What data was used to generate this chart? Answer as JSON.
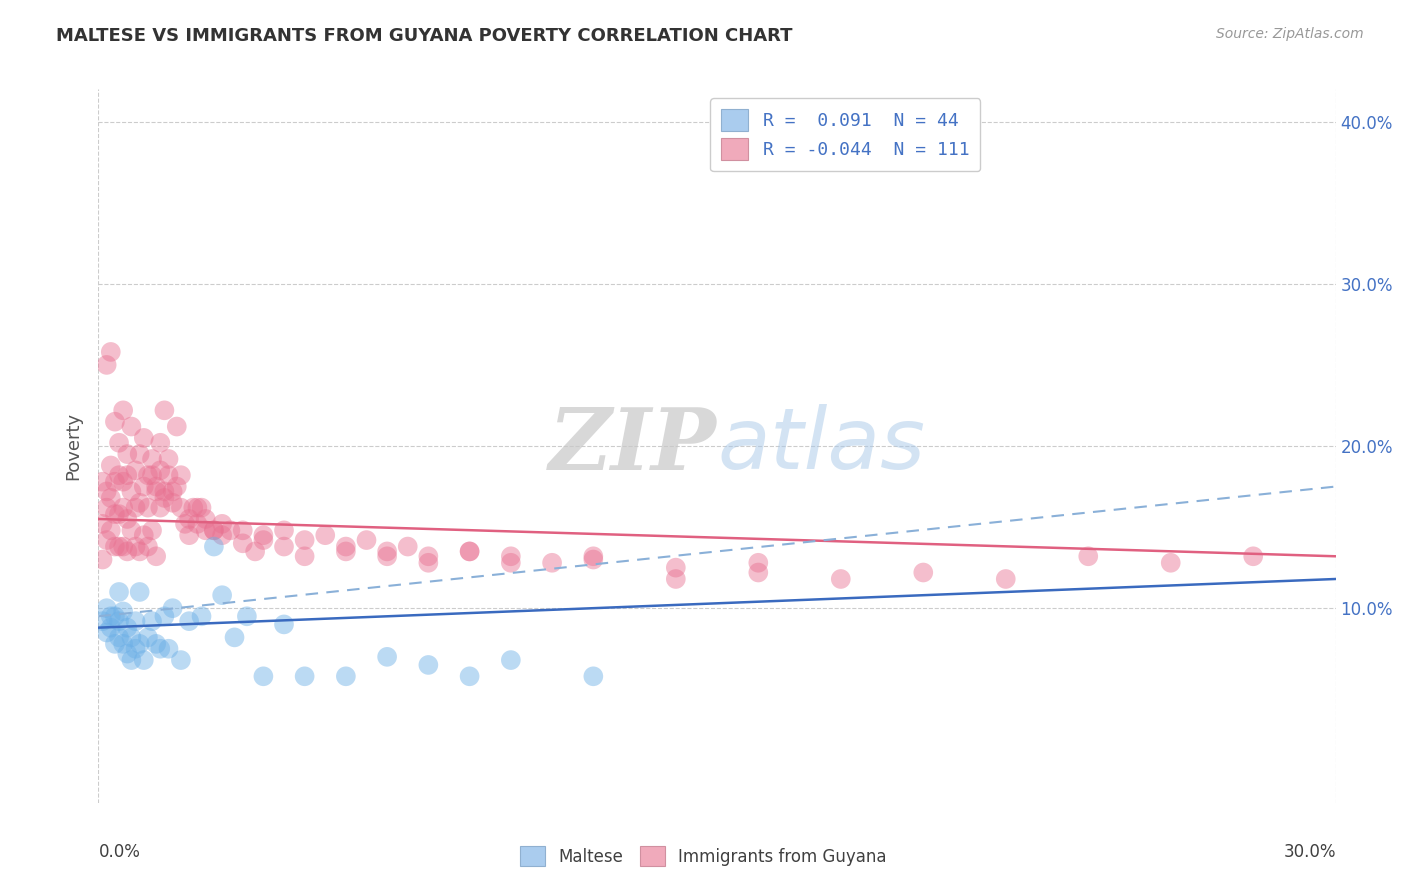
{
  "title": "MALTESE VS IMMIGRANTS FROM GUYANA POVERTY CORRELATION CHART",
  "source": "Source: ZipAtlas.com",
  "ylabel": "Poverty",
  "xlim": [
    0.0,
    0.3
  ],
  "ylim": [
    -0.02,
    0.42
  ],
  "yticks": [
    0.1,
    0.2,
    0.3,
    0.4
  ],
  "ytick_labels": [
    "10.0%",
    "20.0%",
    "30.0%",
    "40.0%"
  ],
  "legend_entries": [
    {
      "label": "R =  0.091  N = 44",
      "color": "#aaccee"
    },
    {
      "label": "R = -0.044  N = 111",
      "color": "#f0aabb"
    }
  ],
  "maltese_color": "#6aaee6",
  "guyana_color": "#e87090",
  "trend_maltese_color": "#3a6abf",
  "trend_guyana_color": "#e06080",
  "trend_dashed_color": "#8ab0d8",
  "background_color": "#ffffff",
  "grid_color": "#cccccc",
  "title_color": "#404040",
  "watermark_zip": "ZIP",
  "watermark_atlas": "atlas",
  "maltese_x": [
    0.001,
    0.002,
    0.002,
    0.003,
    0.003,
    0.004,
    0.004,
    0.005,
    0.005,
    0.005,
    0.006,
    0.006,
    0.007,
    0.007,
    0.008,
    0.008,
    0.009,
    0.009,
    0.01,
    0.01,
    0.011,
    0.012,
    0.013,
    0.014,
    0.015,
    0.016,
    0.017,
    0.018,
    0.02,
    0.022,
    0.025,
    0.028,
    0.03,
    0.033,
    0.036,
    0.04,
    0.045,
    0.05,
    0.06,
    0.07,
    0.08,
    0.09,
    0.1,
    0.12
  ],
  "maltese_y": [
    0.092,
    0.085,
    0.1,
    0.088,
    0.095,
    0.078,
    0.095,
    0.082,
    0.092,
    0.11,
    0.078,
    0.098,
    0.072,
    0.088,
    0.068,
    0.082,
    0.075,
    0.092,
    0.078,
    0.11,
    0.068,
    0.082,
    0.092,
    0.078,
    0.075,
    0.095,
    0.075,
    0.1,
    0.068,
    0.092,
    0.095,
    0.138,
    0.108,
    0.082,
    0.095,
    0.058,
    0.09,
    0.058,
    0.058,
    0.07,
    0.065,
    0.058,
    0.068,
    0.058
  ],
  "guyana_x": [
    0.001,
    0.001,
    0.001,
    0.002,
    0.002,
    0.002,
    0.003,
    0.003,
    0.003,
    0.004,
    0.004,
    0.004,
    0.005,
    0.005,
    0.005,
    0.006,
    0.006,
    0.006,
    0.007,
    0.007,
    0.007,
    0.008,
    0.008,
    0.009,
    0.009,
    0.01,
    0.01,
    0.011,
    0.011,
    0.012,
    0.012,
    0.013,
    0.013,
    0.014,
    0.014,
    0.015,
    0.015,
    0.016,
    0.016,
    0.017,
    0.018,
    0.019,
    0.02,
    0.021,
    0.022,
    0.023,
    0.024,
    0.025,
    0.026,
    0.028,
    0.03,
    0.032,
    0.035,
    0.038,
    0.04,
    0.045,
    0.05,
    0.06,
    0.07,
    0.08,
    0.09,
    0.1,
    0.12,
    0.14,
    0.16,
    0.18,
    0.2,
    0.22,
    0.24,
    0.26,
    0.28,
    0.002,
    0.003,
    0.004,
    0.005,
    0.006,
    0.007,
    0.008,
    0.009,
    0.01,
    0.011,
    0.012,
    0.013,
    0.014,
    0.015,
    0.016,
    0.017,
    0.018,
    0.019,
    0.02,
    0.022,
    0.024,
    0.026,
    0.028,
    0.03,
    0.035,
    0.04,
    0.045,
    0.05,
    0.055,
    0.06,
    0.065,
    0.07,
    0.075,
    0.08,
    0.09,
    0.1,
    0.11,
    0.12,
    0.14,
    0.16
  ],
  "guyana_y": [
    0.152,
    0.178,
    0.13,
    0.162,
    0.142,
    0.172,
    0.168,
    0.148,
    0.188,
    0.158,
    0.138,
    0.178,
    0.182,
    0.158,
    0.138,
    0.162,
    0.138,
    0.178,
    0.155,
    0.182,
    0.135,
    0.172,
    0.148,
    0.162,
    0.138,
    0.165,
    0.135,
    0.175,
    0.145,
    0.162,
    0.138,
    0.182,
    0.148,
    0.172,
    0.132,
    0.202,
    0.162,
    0.222,
    0.168,
    0.192,
    0.172,
    0.212,
    0.182,
    0.152,
    0.145,
    0.162,
    0.152,
    0.162,
    0.148,
    0.148,
    0.145,
    0.148,
    0.14,
    0.135,
    0.142,
    0.138,
    0.132,
    0.135,
    0.132,
    0.128,
    0.135,
    0.128,
    0.132,
    0.118,
    0.122,
    0.118,
    0.122,
    0.118,
    0.132,
    0.128,
    0.132,
    0.25,
    0.258,
    0.215,
    0.202,
    0.222,
    0.195,
    0.212,
    0.185,
    0.195,
    0.205,
    0.182,
    0.192,
    0.175,
    0.185,
    0.172,
    0.182,
    0.165,
    0.175,
    0.162,
    0.155,
    0.162,
    0.155,
    0.148,
    0.152,
    0.148,
    0.145,
    0.148,
    0.142,
    0.145,
    0.138,
    0.142,
    0.135,
    0.138,
    0.132,
    0.135,
    0.132,
    0.128,
    0.13,
    0.125,
    0.128
  ]
}
